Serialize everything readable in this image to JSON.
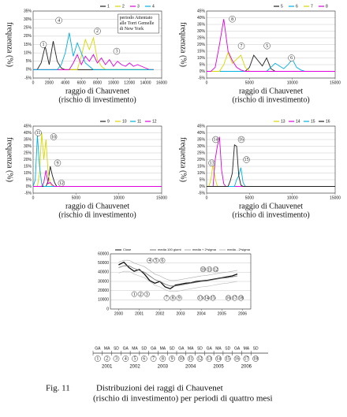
{
  "chart_data": [
    {
      "type": "line",
      "ylabel": "frequenza (%)",
      "xlabel": [
        "raggio di Chauvenet",
        "(rischio di investimento)"
      ],
      "xlim": [
        0,
        16000
      ],
      "xticks": [
        0,
        2000,
        4000,
        6000,
        8000,
        10000,
        12000,
        14000,
        16000
      ],
      "ylim": [
        -5,
        35
      ],
      "yticks": [
        {
          "value": -5,
          "label": "-5%"
        },
        {
          "value": 0,
          "label": "0%"
        },
        {
          "value": 5,
          "label": "5%"
        },
        {
          "value": 10,
          "label": "10%"
        },
        {
          "value": 15,
          "label": "15%"
        },
        {
          "value": 20,
          "label": "20%"
        },
        {
          "value": 25,
          "label": "25%"
        },
        {
          "value": 30,
          "label": "30%"
        },
        {
          "value": 35,
          "label": "35%"
        }
      ],
      "grid": true,
      "x": [
        0,
        500,
        1000,
        1500,
        2000,
        2500,
        3000,
        3500,
        4000,
        4500,
        5000,
        5500,
        6000,
        6500,
        7000,
        7500,
        8000,
        8500,
        9000,
        9500,
        10000,
        10500,
        11000,
        11500,
        12000,
        12500,
        13000,
        13500,
        14000,
        14500,
        15000
      ],
      "series": [
        {
          "name": "1",
          "color": "#222222",
          "values": [
            0,
            0,
            4,
            14,
            3,
            17,
            5,
            1,
            0,
            0,
            0,
            0,
            0,
            0,
            0,
            0,
            0,
            0,
            0,
            0,
            0,
            0,
            0,
            0,
            0,
            0,
            0,
            0,
            0,
            0,
            0
          ]
        },
        {
          "name": "2",
          "color": "#d8d800",
          "values": [
            0,
            0,
            0,
            0,
            0,
            0,
            0,
            0,
            0,
            0,
            0,
            0,
            8,
            18,
            12,
            19,
            6,
            2,
            0,
            0,
            0,
            0,
            0,
            0,
            0,
            0,
            0,
            0,
            0,
            0,
            0
          ]
        },
        {
          "name": "3",
          "color": "#e000e0",
          "values": [
            0,
            0,
            0,
            0,
            0,
            0,
            0,
            0,
            0,
            0,
            4,
            9,
            3,
            8,
            5,
            9,
            4,
            7,
            3,
            6,
            2,
            5,
            3,
            2,
            4,
            2,
            3,
            2,
            1,
            0,
            0
          ]
        },
        {
          "name": "4",
          "color": "#00b0e0",
          "values": [
            0,
            0,
            0,
            0,
            0,
            0,
            0,
            3,
            10,
            22,
            8,
            16,
            10,
            4,
            2,
            0,
            0,
            0,
            0,
            0,
            0,
            0,
            0,
            0,
            0,
            0,
            0,
            0,
            0,
            0,
            0
          ]
        }
      ],
      "annotations": [
        "1",
        "4",
        "2",
        "3"
      ],
      "note": [
        "periodo Attentato",
        "alle Torri Gemelle",
        "di New York"
      ]
    },
    {
      "type": "line",
      "ylabel": "frequenza (%)",
      "xlabel": [
        "raggio di Chauvenet",
        "(rischio di investimento)"
      ],
      "xlim": [
        0,
        15000
      ],
      "xticks": [
        0,
        5000,
        10000,
        15000
      ],
      "ylim": [
        -5,
        45
      ],
      "yticks": [
        {
          "value": -5,
          "label": "-5%"
        },
        {
          "value": 0,
          "label": "0%"
        },
        {
          "value": 5,
          "label": "5%"
        },
        {
          "value": 10,
          "label": "10%"
        },
        {
          "value": 15,
          "label": "15%"
        },
        {
          "value": 20,
          "label": "20%"
        },
        {
          "value": 25,
          "label": "25%"
        },
        {
          "value": 30,
          "label": "30%"
        },
        {
          "value": 35,
          "label": "35%"
        },
        {
          "value": 40,
          "label": "40%"
        },
        {
          "value": 45,
          "label": "45%"
        }
      ],
      "grid": true,
      "x": [
        0,
        500,
        1000,
        1500,
        2000,
        2500,
        3000,
        3500,
        4000,
        4500,
        5000,
        5500,
        6000,
        6500,
        7000,
        7500,
        8000,
        8500,
        9000,
        9500,
        10000,
        10500,
        11000,
        11500,
        12000,
        12500,
        13000,
        13500,
        14000,
        14500,
        15000
      ],
      "series": [
        {
          "name": "5",
          "color": "#222222",
          "values": [
            0,
            0,
            0,
            0,
            0,
            0,
            0,
            0,
            0,
            0,
            3,
            12,
            8,
            4,
            10,
            2,
            0,
            0,
            0,
            0,
            0,
            0,
            0,
            0,
            0,
            0,
            0,
            0,
            0,
            0,
            0
          ]
        },
        {
          "name": "6",
          "color": "#00b0e0",
          "values": [
            0,
            0,
            0,
            0,
            0,
            0,
            0,
            0,
            0,
            0,
            0,
            0,
            0,
            0,
            0,
            3,
            6,
            4,
            2,
            5,
            9,
            3,
            1,
            0,
            0,
            0,
            0,
            0,
            0,
            0,
            0
          ]
        },
        {
          "name": "7",
          "color": "#d8d800",
          "values": [
            0,
            0,
            0,
            0,
            5,
            14,
            6,
            9,
            12,
            3,
            0,
            0,
            0,
            0,
            0,
            0,
            0,
            0,
            0,
            0,
            0,
            0,
            0,
            0,
            0,
            0,
            0,
            0,
            0,
            0,
            0
          ]
        },
        {
          "name": "8",
          "color": "#e000e0",
          "values": [
            0,
            0,
            3,
            20,
            39,
            15,
            8,
            3,
            1,
            0,
            0,
            0,
            0,
            0,
            0,
            0,
            0,
            0,
            0,
            0,
            0,
            0,
            0,
            0,
            0,
            0,
            0,
            0,
            0,
            0,
            0
          ]
        }
      ],
      "annotations": [
        "8",
        "7",
        "5",
        "6"
      ]
    },
    {
      "type": "line",
      "ylabel": "frequenza (%)",
      "xlabel": [
        "raggio di Chauvenet",
        "(rischio di investimento)"
      ],
      "xlim": [
        0,
        15000
      ],
      "xticks": [
        0,
        5000,
        10000,
        15000
      ],
      "ylim": [
        -5,
        45
      ],
      "yticks": [
        {
          "value": -5,
          "label": "-5%"
        },
        {
          "value": 0,
          "label": "0%"
        },
        {
          "value": 5,
          "label": "5%"
        },
        {
          "value": 10,
          "label": "10%"
        },
        {
          "value": 15,
          "label": "15%"
        },
        {
          "value": 20,
          "label": "20%"
        },
        {
          "value": 25,
          "label": "25%"
        },
        {
          "value": 30,
          "label": "30%"
        },
        {
          "value": 35,
          "label": "35%"
        },
        {
          "value": 40,
          "label": "40%"
        },
        {
          "value": 45,
          "label": "45%"
        }
      ],
      "grid": true,
      "x": [
        0,
        250,
        500,
        750,
        1000,
        1250,
        1500,
        1750,
        2000,
        2250,
        2500,
        2750,
        3000,
        3250,
        3500,
        3750,
        4000,
        4250,
        4500,
        4750,
        5000,
        15000
      ],
      "series": [
        {
          "name": "9",
          "color": "#222222",
          "values": [
            0,
            0,
            0,
            0,
            0,
            0,
            0,
            4,
            15,
            8,
            3,
            0,
            0,
            0,
            0,
            0,
            0,
            0,
            0,
            0,
            0,
            0
          ]
        },
        {
          "name": "10",
          "color": "#d8d800",
          "values": [
            0,
            0,
            0,
            10,
            40,
            20,
            35,
            10,
            2,
            0,
            0,
            0,
            0,
            0,
            0,
            0,
            0,
            0,
            0,
            0,
            0,
            0
          ]
        },
        {
          "name": "11",
          "color": "#00b0e0",
          "values": [
            0,
            5,
            38,
            15,
            2,
            0,
            0,
            0,
            0,
            0,
            0,
            0,
            0,
            0,
            0,
            0,
            0,
            0,
            0,
            0,
            0,
            0
          ]
        },
        {
          "name": "12",
          "color": "#e000e0",
          "values": [
            0,
            0,
            0,
            0,
            0,
            3,
            12,
            2,
            3,
            1,
            0,
            0,
            0,
            0,
            0,
            0,
            0,
            0,
            0,
            0,
            0,
            0
          ]
        }
      ],
      "annotations": [
        "11",
        "10",
        "9",
        "12"
      ]
    },
    {
      "type": "line",
      "ylabel": "frequenza (%)",
      "xlabel": [
        "raggio di Chauvenet",
        "(rischio di investimento)"
      ],
      "xlim": [
        0,
        15000
      ],
      "xticks": [
        0,
        5000,
        10000,
        15000
      ],
      "ylim": [
        -5,
        45
      ],
      "yticks": [
        {
          "value": -5,
          "label": "-5%"
        },
        {
          "value": 0,
          "label": "0%"
        },
        {
          "value": 5,
          "label": "5%"
        },
        {
          "value": 10,
          "label": "10%"
        },
        {
          "value": 15,
          "label": "15%"
        },
        {
          "value": 20,
          "label": "20%"
        },
        {
          "value": 25,
          "label": "25%"
        },
        {
          "value": 30,
          "label": "30%"
        },
        {
          "value": 35,
          "label": "35%"
        },
        {
          "value": 40,
          "label": "40%"
        },
        {
          "value": 45,
          "label": "45%"
        }
      ],
      "grid": true,
      "x": [
        0,
        250,
        500,
        750,
        1000,
        1250,
        1500,
        1750,
        2000,
        2250,
        2500,
        2750,
        3000,
        3250,
        3500,
        3750,
        4000,
        4250,
        4500,
        4750,
        5000,
        15000
      ],
      "series": [
        {
          "name": "13",
          "color": "#d8d800",
          "values": [
            0,
            0,
            5,
            17,
            6,
            0,
            0,
            0,
            0,
            0,
            0,
            0,
            0,
            0,
            0,
            0,
            0,
            0,
            0,
            0,
            0,
            0
          ]
        },
        {
          "name": "14",
          "color": "#e000e0",
          "values": [
            0,
            0,
            0,
            0,
            20,
            30,
            37,
            12,
            2,
            0,
            0,
            0,
            0,
            0,
            0,
            0,
            0,
            0,
            0,
            0,
            0,
            0
          ]
        },
        {
          "name": "15",
          "color": "#00b0e0",
          "values": [
            0,
            0,
            0,
            0,
            0,
            0,
            0,
            0,
            0,
            0,
            0,
            0,
            0,
            0,
            5,
            8,
            14,
            3,
            0,
            0,
            0,
            0
          ]
        },
        {
          "name": "16",
          "color": "#222222",
          "values": [
            0,
            0,
            0,
            0,
            0,
            0,
            0,
            0,
            0,
            0,
            0,
            4,
            10,
            31,
            30,
            8,
            1,
            0,
            0,
            0,
            0,
            0
          ]
        }
      ],
      "annotations": [
        "14",
        "16",
        "13",
        "15"
      ]
    },
    {
      "type": "stock",
      "xlim": [
        1999.6,
        2006.4
      ],
      "xticks": [
        2000,
        2001,
        2002,
        2003,
        2004,
        2005,
        2006
      ],
      "ylim": [
        0,
        60000
      ],
      "yticks": [
        0,
        10000,
        20000,
        30000,
        40000,
        50000,
        60000
      ],
      "grid": true,
      "x": [
        2000,
        2000.25,
        2000.5,
        2000.75,
        2001,
        2001.25,
        2001.5,
        2001.75,
        2002,
        2002.25,
        2002.5,
        2002.75,
        2003,
        2003.25,
        2003.5,
        2003.75,
        2004,
        2004.25,
        2004.5,
        2004.75,
        2005,
        2005.25,
        2005.5,
        2005.75
      ],
      "series": [
        {
          "name": "Close",
          "color": "#111111",
          "values": [
            48000,
            51000,
            45000,
            41000,
            43000,
            38000,
            31000,
            28000,
            30000,
            24000,
            22000,
            26000,
            27000,
            28000,
            28500,
            30000,
            30500,
            31000,
            32000,
            33000,
            34000,
            35000,
            36000,
            38000
          ]
        },
        {
          "name": "media 100 giorni",
          "color": "#777777",
          "values": [
            45000,
            47000,
            47000,
            44000,
            42000,
            40000,
            36000,
            32000,
            30000,
            27000,
            25000,
            25000,
            26000,
            27000,
            28000,
            29000,
            30000,
            30500,
            31500,
            32500,
            33500,
            34000,
            35000,
            36000
          ]
        },
        {
          "name": "media + 2*sigma",
          "color": "#aaaaaa",
          "values": [
            51000,
            53000,
            53000,
            50000,
            48000,
            46000,
            42000,
            38000,
            36000,
            33000,
            31000,
            31000,
            32000,
            33000,
            34000,
            35000,
            36000,
            36500,
            37500,
            38500,
            39500,
            40000,
            41000,
            42000
          ]
        },
        {
          "name": "media - 2*sigma",
          "color": "#bbbbbb",
          "values": [
            39000,
            41000,
            41000,
            38000,
            36000,
            34000,
            30000,
            26000,
            24000,
            21000,
            19000,
            19000,
            20000,
            21000,
            22000,
            23000,
            24000,
            24500,
            25500,
            26500,
            27500,
            28000,
            29000,
            30000
          ]
        }
      ],
      "annotations": [
        [
          "4",
          "5",
          "6"
        ],
        [
          "10",
          "11",
          "12"
        ],
        [
          "1",
          "2",
          "3"
        ],
        [
          "7",
          "8",
          "9"
        ],
        [
          "13",
          "14",
          "15"
        ],
        [
          "16",
          "17",
          "18"
        ]
      ]
    }
  ],
  "timeline": {
    "period_labels": [
      "GA",
      "MA",
      "SD",
      "GA",
      "MA",
      "SD",
      "GA",
      "MA",
      "SD",
      "GA",
      "MA",
      "SD",
      "GA",
      "MA",
      "SD",
      "GA",
      "MA",
      "SD"
    ],
    "period_numbers": [
      "1",
      "2",
      "3",
      "4",
      "5",
      "6",
      "7",
      "8",
      "9",
      "10",
      "11",
      "12",
      "13",
      "14",
      "15",
      "16",
      "17",
      "18"
    ],
    "years": [
      "2001",
      "2002",
      "2003",
      "2004",
      "2005",
      "2006"
    ]
  },
  "caption": {
    "label": "Fig. 11",
    "lines": [
      "Distribuzioni dei raggi di Chauvenet",
      "(rischio di investimento) per periodi di quattro mesi"
    ]
  }
}
